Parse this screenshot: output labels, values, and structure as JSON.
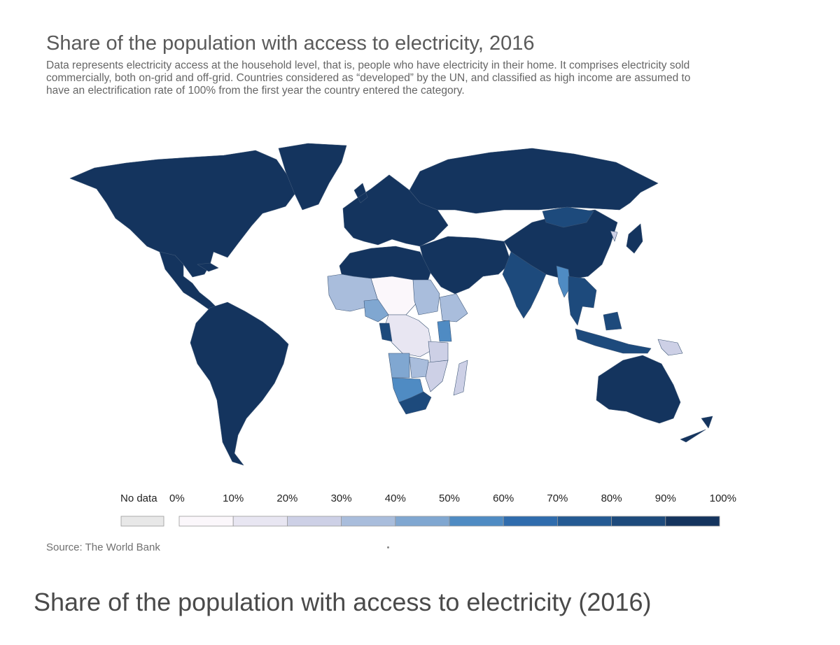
{
  "title": "Share of the population with access to electricity, 2016",
  "subtitle": "Data represents electricity access at the household level, that is, people who have electricity in their home. It comprises electricity sold commercially, both on-grid and off-grid. Countries considered as “developed” by the UN, and classified as high income are assumed to have an electrification rate of 100% from the first year the country entered the category.",
  "source": "Source: The World Bank",
  "caption": "Share of the population with access to electricity (2016)",
  "legend": {
    "no_data_label": "No data",
    "no_data_color": "#e8e8e8",
    "ticks": [
      "0%",
      "10%",
      "20%",
      "30%",
      "40%",
      "50%",
      "60%",
      "70%",
      "80%",
      "90%",
      "100%"
    ],
    "bins": [
      {
        "from": 0,
        "to": 10,
        "color": "#fbf7fb"
      },
      {
        "from": 10,
        "to": 20,
        "color": "#e8e6f2"
      },
      {
        "from": 20,
        "to": 30,
        "color": "#cdd0e6"
      },
      {
        "from": 30,
        "to": 40,
        "color": "#a9bddc"
      },
      {
        "from": 40,
        "to": 50,
        "color": "#80a7d1"
      },
      {
        "from": 50,
        "to": 60,
        "color": "#4f8bc3"
      },
      {
        "from": 60,
        "to": 70,
        "color": "#2f6cad"
      },
      {
        "from": 70,
        "to": 80,
        "color": "#245a93"
      },
      {
        "from": 80,
        "to": 90,
        "color": "#1d4a7c"
      },
      {
        "from": 90,
        "to": 100,
        "color": "#14345e"
      }
    ]
  },
  "regions": [
    {
      "name": "North America",
      "bin": 9
    },
    {
      "name": "Greenland",
      "bin": 9
    },
    {
      "name": "Central America",
      "bin": 9
    },
    {
      "name": "South America",
      "bin": 9
    },
    {
      "name": "Europe",
      "bin": 9
    },
    {
      "name": "Russia",
      "bin": 9
    },
    {
      "name": "Middle East",
      "bin": 9
    },
    {
      "name": "China",
      "bin": 9
    },
    {
      "name": "Mongolia",
      "bin": 8
    },
    {
      "name": "India",
      "bin": 8
    },
    {
      "name": "Myanmar",
      "bin": 5
    },
    {
      "name": "Southeast Asia",
      "bin": 8
    },
    {
      "name": "Indonesia",
      "bin": 8
    },
    {
      "name": "Papua New Guinea",
      "bin": 2
    },
    {
      "name": "Australia",
      "bin": 9
    },
    {
      "name": "New Zealand",
      "bin": 9
    },
    {
      "name": "Japan",
      "bin": 9
    },
    {
      "name": "North Korea",
      "bin": 2
    },
    {
      "name": "North Africa",
      "bin": 9
    },
    {
      "name": "Sahel",
      "bin": 0
    },
    {
      "name": "West Africa",
      "bin": 3
    },
    {
      "name": "Nigeria",
      "bin": 4
    },
    {
      "name": "Central Africa",
      "bin": 1
    },
    {
      "name": "Gabon",
      "bin": 8
    },
    {
      "name": "Sudan",
      "bin": 3
    },
    {
      "name": "Ethiopia",
      "bin": 3
    },
    {
      "name": "Kenya",
      "bin": 5
    },
    {
      "name": "Tanzania",
      "bin": 2
    },
    {
      "name": "Angola",
      "bin": 4
    },
    {
      "name": "Zambia",
      "bin": 3
    },
    {
      "name": "Mozambique",
      "bin": 2
    },
    {
      "name": "Madagascar",
      "bin": 2
    },
    {
      "name": "Namibia and Botswana",
      "bin": 5
    },
    {
      "name": "South Africa",
      "bin": 8
    }
  ]
}
